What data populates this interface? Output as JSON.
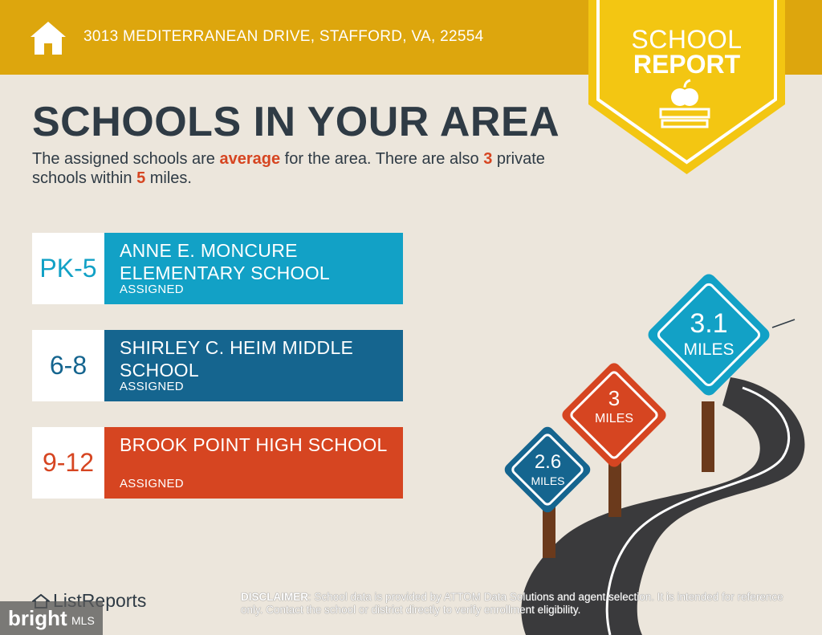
{
  "header": {
    "address": "3013 MEDITERRANEAN DRIVE, STAFFORD, VA, 22554",
    "badge_line1": "SCHOOL",
    "badge_line2": "REPORT"
  },
  "main": {
    "title": "SCHOOLS IN YOUR AREA",
    "subtitle": {
      "part1": "The assigned schools are ",
      "rating": "average",
      "part2": " for the area. There are also ",
      "private_count": "3",
      "part3": " private schools within ",
      "radius": "5",
      "part4": " miles."
    }
  },
  "schools": [
    {
      "grades": "PK-5",
      "name": "ANNE E. MONCURE ELEMENTARY SCHOOL",
      "status": "ASSIGNED",
      "color": "#12a1c6"
    },
    {
      "grades": "6-8",
      "name": "SHIRLEY C. HEIM MIDDLE SCHOOL",
      "status": "ASSIGNED",
      "color": "#15658f"
    },
    {
      "grades": "9-12",
      "name": "BROOK POINT HIGH SCHOOL",
      "status": "ASSIGNED",
      "color": "#d64521"
    }
  ],
  "signs": [
    {
      "distance": "2.6",
      "unit": "MILES",
      "color": "#15658f"
    },
    {
      "distance": "3",
      "unit": "MILES",
      "color": "#d64521"
    },
    {
      "distance": "3.1",
      "unit": "MILES",
      "color": "#12a1c6"
    }
  ],
  "footer": {
    "logo": "ListReports",
    "watermark": "bright",
    "watermark_suffix": "MLS",
    "disclaimer_label": "DISCLAIMER",
    "disclaimer_text": ": School data is provided by ATTOM Data Solutions and agent selection. It is intended for reference only. Contact the school or district directly to verify enrollment eligibility."
  },
  "colors": {
    "header_bg": "#dda60d",
    "badge_bg": "#f3c612",
    "page_bg": "#ece6dc",
    "title_text": "#2f3b45",
    "highlight": "#d64521",
    "road": "#3a3a3c"
  }
}
